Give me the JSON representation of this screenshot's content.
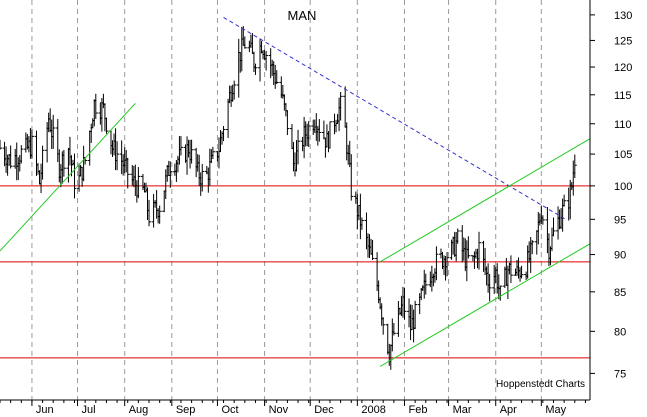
{
  "chart_data": {
    "type": "ohlc",
    "title": "MAN",
    "watermark": "Hoppenstedt Charts",
    "xlabel": "",
    "ylabel": "",
    "ylim": [
      72,
      133
    ],
    "y_scale": "log",
    "grid": "vertical dashed at month starts",
    "y_ticks": [
      75,
      80,
      85,
      90,
      95,
      100,
      105,
      110,
      115,
      120,
      125,
      130
    ],
    "x_ticks": [
      {
        "date": "2007-06-01",
        "label": "Jun"
      },
      {
        "date": "2007-07-01",
        "label": "Jul"
      },
      {
        "date": "2007-08-01",
        "label": "Aug"
      },
      {
        "date": "2007-09-01",
        "label": "Sep"
      },
      {
        "date": "2007-10-01",
        "label": "Oct"
      },
      {
        "date": "2007-11-01",
        "label": "Nov"
      },
      {
        "date": "2007-12-01",
        "label": "Dec"
      },
      {
        "date": "2008-01-01",
        "label": "2008"
      },
      {
        "date": "2008-02-01",
        "label": "Feb"
      },
      {
        "date": "2008-03-01",
        "label": "Mar"
      },
      {
        "date": "2008-04-01",
        "label": "Apr"
      },
      {
        "date": "2008-05-01",
        "label": "May"
      }
    ],
    "x_range": [
      "2007-05-11",
      "2008-06-02"
    ],
    "horizontal_lines": [
      {
        "y": 100,
        "color": "#e00000"
      },
      {
        "y": 89,
        "color": "#e00000"
      },
      {
        "y": 76.8,
        "color": "#e00000"
      }
    ],
    "trend_lines": [
      {
        "from": [
          "2007-05-11",
          90.5
        ],
        "to": [
          "2007-08-08",
          113.5
        ],
        "color": "#22cc22",
        "style": "solid"
      },
      {
        "from": [
          "2007-10-05",
          129.5
        ],
        "to": [
          "2008-05-17",
          95
        ],
        "color": "#3333cc",
        "style": "dashed"
      },
      {
        "from": [
          "2008-01-16",
          89
        ],
        "to": [
          "2008-06-02",
          107.5
        ],
        "color": "#22cc22",
        "style": "solid"
      },
      {
        "from": [
          "2008-01-16",
          75.8
        ],
        "to": [
          "2008-06-02",
          91.5
        ],
        "color": "#22cc22",
        "style": "solid"
      }
    ],
    "anchors": [
      [
        "2007-05-11",
        106
      ],
      [
        "2007-05-18",
        104
      ],
      [
        "2007-05-24",
        105
      ],
      [
        "2007-06-01",
        106.5
      ],
      [
        "2007-06-06",
        100.5
      ],
      [
        "2007-06-12",
        111
      ],
      [
        "2007-06-19",
        103
      ],
      [
        "2007-06-25",
        106
      ],
      [
        "2007-06-30",
        99.5
      ],
      [
        "2007-07-06",
        104
      ],
      [
        "2007-07-12",
        113.5
      ],
      [
        "2007-07-18",
        112.5
      ],
      [
        "2007-07-24",
        106
      ],
      [
        "2007-07-30",
        104
      ],
      [
        "2007-08-05",
        101
      ],
      [
        "2007-08-09",
        100
      ],
      [
        "2007-08-14",
        99
      ],
      [
        "2007-08-17",
        95.5
      ],
      [
        "2007-08-24",
        97
      ],
      [
        "2007-08-31",
        103.5
      ],
      [
        "2007-09-07",
        104.5
      ],
      [
        "2007-09-12",
        106
      ],
      [
        "2007-09-18",
        102
      ],
      [
        "2007-09-23",
        101
      ],
      [
        "2007-09-27",
        103.5
      ],
      [
        "2007-10-02",
        106
      ],
      [
        "2007-10-10",
        116
      ],
      [
        "2007-10-15",
        122
      ],
      [
        "2007-10-20",
        125
      ],
      [
        "2007-10-25",
        121
      ],
      [
        "2007-10-30",
        124.5
      ],
      [
        "2007-11-05",
        120.5
      ],
      [
        "2007-11-12",
        115
      ],
      [
        "2007-11-16",
        110
      ],
      [
        "2007-11-20",
        103.5
      ],
      [
        "2007-11-27",
        108
      ],
      [
        "2007-12-04",
        111
      ],
      [
        "2007-12-12",
        107
      ],
      [
        "2007-12-18",
        111.5
      ],
      [
        "2007-12-22",
        113.5
      ],
      [
        "2007-12-28",
        99.5
      ],
      [
        "2008-01-04",
        94
      ],
      [
        "2008-01-10",
        89.5
      ],
      [
        "2008-01-15",
        85
      ],
      [
        "2008-01-19",
        80
      ],
      [
        "2008-01-22",
        77.5
      ],
      [
        "2008-01-26",
        80.5
      ],
      [
        "2008-01-31",
        83.5
      ],
      [
        "2008-02-05",
        80.5
      ],
      [
        "2008-02-11",
        83.5
      ],
      [
        "2008-02-15",
        86
      ],
      [
        "2008-02-20",
        88.5
      ],
      [
        "2008-02-26",
        89.5
      ],
      [
        "2008-03-03",
        90.5
      ],
      [
        "2008-03-07",
        92
      ],
      [
        "2008-03-12",
        89.5
      ],
      [
        "2008-03-17",
        89
      ],
      [
        "2008-03-21",
        91
      ],
      [
        "2008-03-27",
        86.5
      ],
      [
        "2008-04-01",
        87.5
      ],
      [
        "2008-04-04",
        84.5
      ],
      [
        "2008-04-09",
        88
      ],
      [
        "2008-04-15",
        87.5
      ],
      [
        "2008-04-21",
        88.5
      ],
      [
        "2008-04-27",
        91.5
      ],
      [
        "2008-05-01",
        96.5
      ],
      [
        "2008-05-06",
        91
      ],
      [
        "2008-05-10",
        93.5
      ],
      [
        "2008-05-14",
        96
      ],
      [
        "2008-05-18",
        97
      ],
      [
        "2008-05-21",
        100
      ],
      [
        "2008-05-23",
        104.5
      ]
    ]
  }
}
